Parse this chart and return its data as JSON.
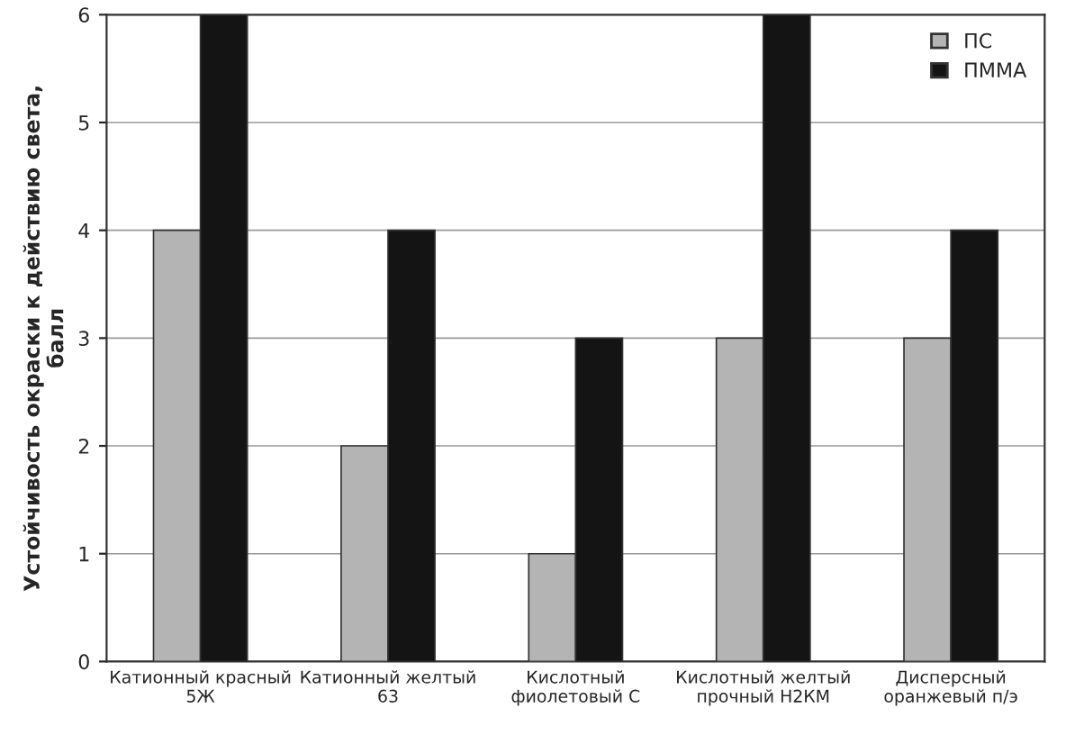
{
  "chart_data": {
    "type": "bar",
    "ylabel": "Устойчивость окраски к действию света,\nбалл",
    "categories": [
      "Катионный красный\n5Ж",
      "Катионный желтый\n63",
      "Кислотный\nфиолетовый С",
      "Кислотный желтый\nпрочный Н2КМ",
      "Дисперсный\nоранжевый п/э"
    ],
    "series": [
      {
        "name": "ПС",
        "color": "#b4b4b4",
        "values": [
          4,
          2,
          1,
          3,
          3
        ]
      },
      {
        "name": "ПММА",
        "color": "#141414",
        "values": [
          6,
          4,
          3,
          6,
          4
        ]
      }
    ],
    "ylim": [
      0,
      6
    ],
    "yticks": [
      0,
      1,
      2,
      3,
      4,
      5,
      6
    ],
    "grid": "y",
    "legend": "top right"
  }
}
